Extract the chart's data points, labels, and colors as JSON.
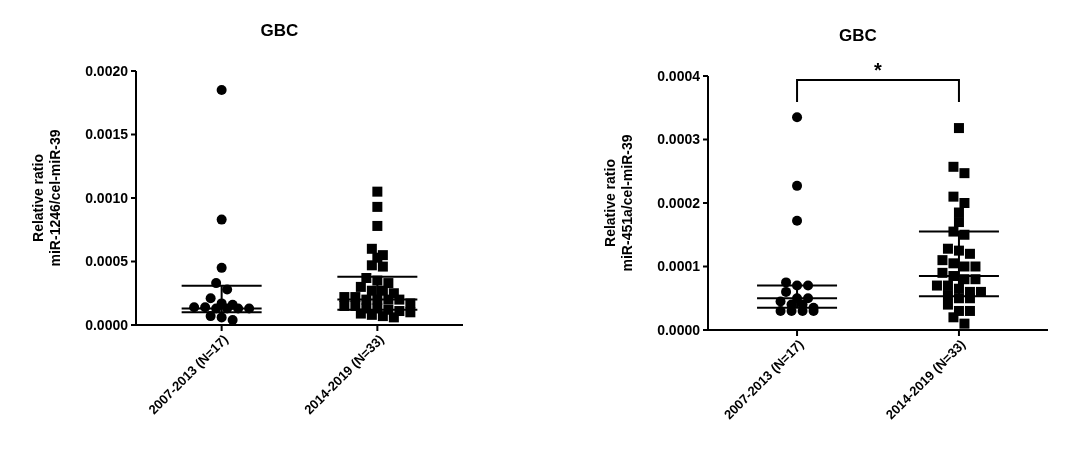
{
  "chart_data": [
    {
      "type": "scatter",
      "title": "GBC",
      "ylabel": "Relative ratio\nmiR-1246/cel-miR-39",
      "categories": [
        "2007-2013 (N=17)",
        "2014-2019 (N=33)"
      ],
      "ylim": [
        0,
        0.002
      ],
      "yticks": [
        {
          "value": 0,
          "label": "0.0000"
        },
        {
          "value": 0.0005,
          "label": "0.0005"
        },
        {
          "value": 0.001,
          "label": "0.0010"
        },
        {
          "value": 0.0015,
          "label": "0.0015"
        },
        {
          "value": 0.002,
          "label": "0.0020"
        }
      ],
      "grid": false,
      "series": [
        {
          "type": "scatter",
          "marker": "circle",
          "color": "#000000",
          "x": [
            "2007-2013 (N=17)",
            "2007-2013 (N=17)",
            "2007-2013 (N=17)",
            "2007-2013 (N=17)",
            "2007-2013 (N=17)",
            "2007-2013 (N=17)",
            "2007-2013 (N=17)",
            "2007-2013 (N=17)",
            "2007-2013 (N=17)",
            "2007-2013 (N=17)",
            "2007-2013 (N=17)",
            "2007-2013 (N=17)",
            "2007-2013 (N=17)",
            "2007-2013 (N=17)",
            "2007-2013 (N=17)",
            "2007-2013 (N=17)",
            "2007-2013 (N=17)"
          ],
          "values": [
            0.00185,
            0.00083,
            0.00045,
            0.00033,
            0.00028,
            0.00021,
            0.00017,
            0.00016,
            0.00014,
            0.00014,
            0.00013,
            0.00013,
            0.00013,
            0.00013,
            7e-05,
            6e-05,
            4e-05
          ]
        },
        {
          "type": "scatter",
          "marker": "square",
          "color": "#000000",
          "x": [
            "2014-2019 (N=33)",
            "2014-2019 (N=33)",
            "2014-2019 (N=33)",
            "2014-2019 (N=33)",
            "2014-2019 (N=33)",
            "2014-2019 (N=33)",
            "2014-2019 (N=33)",
            "2014-2019 (N=33)",
            "2014-2019 (N=33)",
            "2014-2019 (N=33)",
            "2014-2019 (N=33)",
            "2014-2019 (N=33)",
            "2014-2019 (N=33)",
            "2014-2019 (N=33)",
            "2014-2019 (N=33)",
            "2014-2019 (N=33)",
            "2014-2019 (N=33)",
            "2014-2019 (N=33)",
            "2014-2019 (N=33)",
            "2014-2019 (N=33)",
            "2014-2019 (N=33)",
            "2014-2019 (N=33)",
            "2014-2019 (N=33)",
            "2014-2019 (N=33)",
            "2014-2019 (N=33)",
            "2014-2019 (N=33)",
            "2014-2019 (N=33)",
            "2014-2019 (N=33)",
            "2014-2019 (N=33)",
            "2014-2019 (N=33)",
            "2014-2019 (N=33)",
            "2014-2019 (N=33)",
            "2014-2019 (N=33)"
          ],
          "values": [
            0.00105,
            0.00093,
            0.00078,
            0.0006,
            0.00055,
            0.00053,
            0.00047,
            0.00046,
            0.00037,
            0.00035,
            0.00033,
            0.0003,
            0.00027,
            0.00027,
            0.00025,
            0.00022,
            0.00022,
            0.0002,
            0.0002,
            0.0002,
            0.0002,
            0.00017,
            0.00015,
            0.00015,
            0.00013,
            0.00013,
            0.00012,
            0.00011,
            0.0001,
            9e-05,
            8e-05,
            7e-05,
            6e-05
          ]
        },
        {
          "type": "box",
          "color": "#000000",
          "boxes": [
            {
              "low": 0.0001,
              "q1": 0.0001,
              "median": 0.00013,
              "q3": 0.00031,
              "high": 0.00031
            },
            {
              "low": 0.00012,
              "q1": 0.00012,
              "median": 0.0002,
              "q3": 0.00038,
              "high": 0.00038
            }
          ]
        }
      ]
    },
    {
      "type": "scatter",
      "title": "GBC",
      "ylabel": "Relative ratio\nmiR-451a/cel-miR-39",
      "categories": [
        "2007-2013 (N=17)",
        "2014-2019 (N=33)"
      ],
      "ylim": [
        0,
        0.0004
      ],
      "yticks": [
        {
          "value": 0,
          "label": "0.0000"
        },
        {
          "value": 0.0001,
          "label": "0.0001"
        },
        {
          "value": 0.0002,
          "label": "0.0002"
        },
        {
          "value": 0.0003,
          "label": "0.0003"
        },
        {
          "value": 0.0004,
          "label": "0.0004"
        }
      ],
      "grid": false,
      "annotations": [
        "*"
      ],
      "series": [
        {
          "type": "scatter",
          "marker": "circle",
          "color": "#000000",
          "x": [
            "2007-2013 (N=17)",
            "2007-2013 (N=17)",
            "2007-2013 (N=17)",
            "2007-2013 (N=17)",
            "2007-2013 (N=17)",
            "2007-2013 (N=17)",
            "2007-2013 (N=17)",
            "2007-2013 (N=17)",
            "2007-2013 (N=17)",
            "2007-2013 (N=17)",
            "2007-2013 (N=17)",
            "2007-2013 (N=17)",
            "2007-2013 (N=17)",
            "2007-2013 (N=17)",
            "2007-2013 (N=17)",
            "2007-2013 (N=17)",
            "2007-2013 (N=17)"
          ],
          "values": [
            0.000335,
            0.000227,
            0.000172,
            7.5e-05,
            7e-05,
            7e-05,
            6e-05,
            5e-05,
            5e-05,
            4.5e-05,
            4e-05,
            4e-05,
            3.5e-05,
            3e-05,
            3e-05,
            3e-05,
            3e-05
          ]
        },
        {
          "type": "scatter",
          "marker": "square",
          "color": "#000000",
          "x": [
            "2014-2019 (N=33)",
            "2014-2019 (N=33)",
            "2014-2019 (N=33)",
            "2014-2019 (N=33)",
            "2014-2019 (N=33)",
            "2014-2019 (N=33)",
            "2014-2019 (N=33)",
            "2014-2019 (N=33)",
            "2014-2019 (N=33)",
            "2014-2019 (N=33)",
            "2014-2019 (N=33)",
            "2014-2019 (N=33)",
            "2014-2019 (N=33)",
            "2014-2019 (N=33)",
            "2014-2019 (N=33)",
            "2014-2019 (N=33)",
            "2014-2019 (N=33)",
            "2014-2019 (N=33)",
            "2014-2019 (N=33)",
            "2014-2019 (N=33)",
            "2014-2019 (N=33)",
            "2014-2019 (N=33)",
            "2014-2019 (N=33)",
            "2014-2019 (N=33)",
            "2014-2019 (N=33)",
            "2014-2019 (N=33)",
            "2014-2019 (N=33)",
            "2014-2019 (N=33)",
            "2014-2019 (N=33)",
            "2014-2019 (N=33)",
            "2014-2019 (N=33)",
            "2014-2019 (N=33)",
            "2014-2019 (N=33)"
          ],
          "values": [
            0.000318,
            0.000257,
            0.000247,
            0.00021,
            0.0002,
            0.000185,
            0.00017,
            0.000155,
            0.00015,
            0.000128,
            0.000125,
            0.00012,
            0.00011,
            0.000105,
            0.0001,
            0.0001,
            9e-05,
            8.5e-05,
            8e-05,
            8e-05,
            7e-05,
            7e-05,
            6.5e-05,
            6e-05,
            6e-05,
            5.5e-05,
            5e-05,
            5e-05,
            4e-05,
            3e-05,
            3e-05,
            2e-05,
            1e-05
          ]
        },
        {
          "type": "box",
          "color": "#000000",
          "boxes": [
            {
              "low": 3.5e-05,
              "q1": 3.5e-05,
              "median": 5e-05,
              "q3": 7e-05,
              "high": 7e-05
            },
            {
              "low": 5.3e-05,
              "q1": 5.3e-05,
              "median": 8.5e-05,
              "q3": 0.000155,
              "high": 0.000155
            }
          ]
        }
      ]
    }
  ]
}
